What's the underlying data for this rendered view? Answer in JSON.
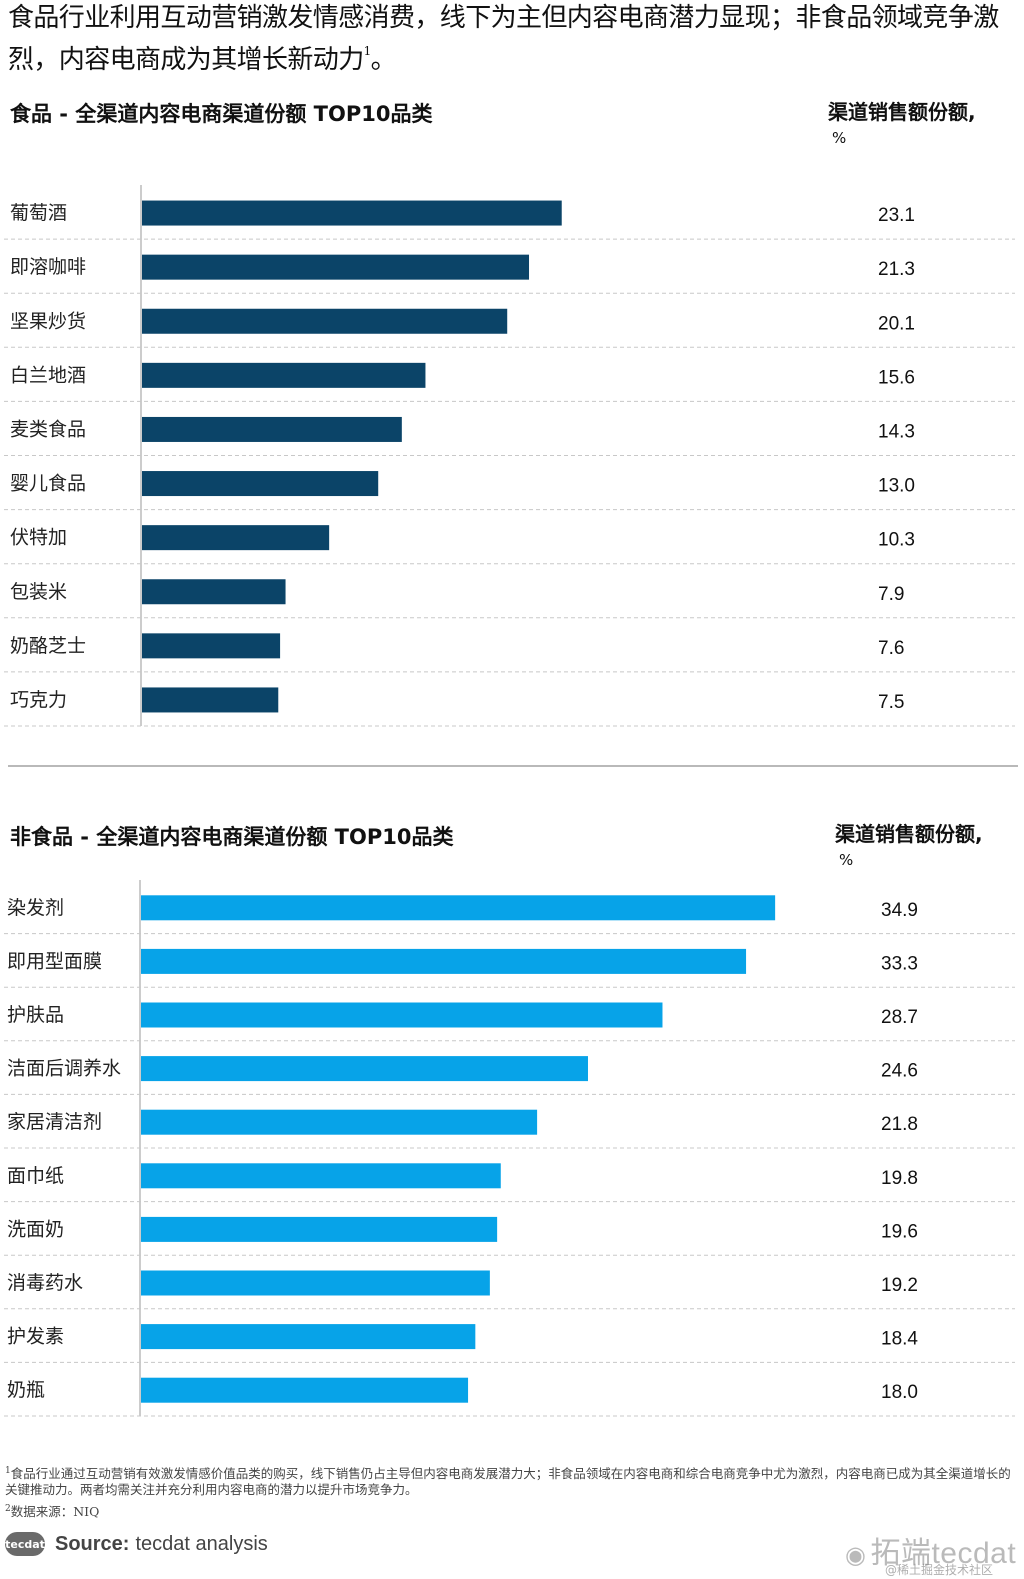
{
  "title": {
    "text": "食品行业利用互动营销激发情感消费，线下为主但内容电商潜力显现；非食品领域竞争激烈，内容电商成为其增长新动力",
    "sup": "1",
    "end": "。"
  },
  "food": {
    "heading": "食品 - 全渠道内容电商渠道份额 TOP10品类",
    "unit_label": "渠道销售额份额,",
    "unit_pct": "%"
  },
  "nonfood": {
    "heading": "非食品 - 全渠道内容电商渠道份额 TOP10品类",
    "unit_label": "渠道销售额份额,",
    "unit_pct": "%"
  },
  "colors": {
    "food_bar": "#0b4468",
    "nonfood_bar": "#07a3e8",
    "gridline": "#c8c8c8",
    "axis": "#999999"
  },
  "chart_data": [
    {
      "type": "bar",
      "orientation": "horizontal",
      "title": "食品 - 全渠道内容电商渠道份额 TOP10品类",
      "ylabel": "渠道销售额份额, %",
      "categories": [
        "葡萄酒",
        "即溶咖啡",
        "坚果炒货",
        "白兰地酒",
        "麦类食品",
        "婴儿食品",
        "伏特加",
        "包装米",
        "奶酪芝士",
        "巧克力"
      ],
      "values": [
        23.1,
        21.3,
        20.1,
        15.6,
        14.3,
        13.0,
        10.3,
        7.9,
        7.6,
        7.5
      ],
      "value_labels": [
        "23.1",
        "21.3",
        "20.1",
        "15.6",
        "14.3",
        "13.0",
        "10.3",
        "7.9",
        "7.6",
        "7.5"
      ],
      "xlim": [
        0,
        40
      ],
      "grid": "dashed row separators",
      "color": "#0b4468"
    },
    {
      "type": "bar",
      "orientation": "horizontal",
      "title": "非食品 - 全渠道内容电商渠道份额 TOP10品类",
      "ylabel": "渠道销售额份额, %",
      "categories": [
        "染发剂",
        "即用型面膜",
        "护肤品",
        "洁面后调养水",
        "家居清洁剂",
        "面巾纸",
        "洗面奶",
        "消毒药水",
        "护发素",
        "奶瓶"
      ],
      "values": [
        34.9,
        33.3,
        28.7,
        24.6,
        21.8,
        19.8,
        19.6,
        19.2,
        18.4,
        18.0
      ],
      "value_labels": [
        "34.9",
        "33.3",
        "28.7",
        "24.6",
        "21.8",
        "19.8",
        "19.6",
        "19.2",
        "18.4",
        "18.0"
      ],
      "xlim": [
        0,
        40
      ],
      "grid": "dashed row separators",
      "color": "#07a3e8"
    }
  ],
  "footnotes": {
    "note1_mark": "1",
    "note1_text": "食品行业通过互动营销有效激发情感价值品类的购买，线下销售仍占主导但内容电商发展潜力大；非食品领域在内容电商和综合电商竞争中尤为激烈，内容电商已成为其全渠道增长的关键推动力。两者均需关注并充分利用内容电商的潜力以提升市场竞争力。",
    "note2_mark": "2",
    "note2_text": "数据来源：NIQ"
  },
  "source": {
    "logo_text": "tecdat",
    "label": "Source:",
    "text": "tecdat analysis"
  },
  "watermark": {
    "text": "拓端tecdat",
    "sub": "@稀土掘金技术社区"
  }
}
